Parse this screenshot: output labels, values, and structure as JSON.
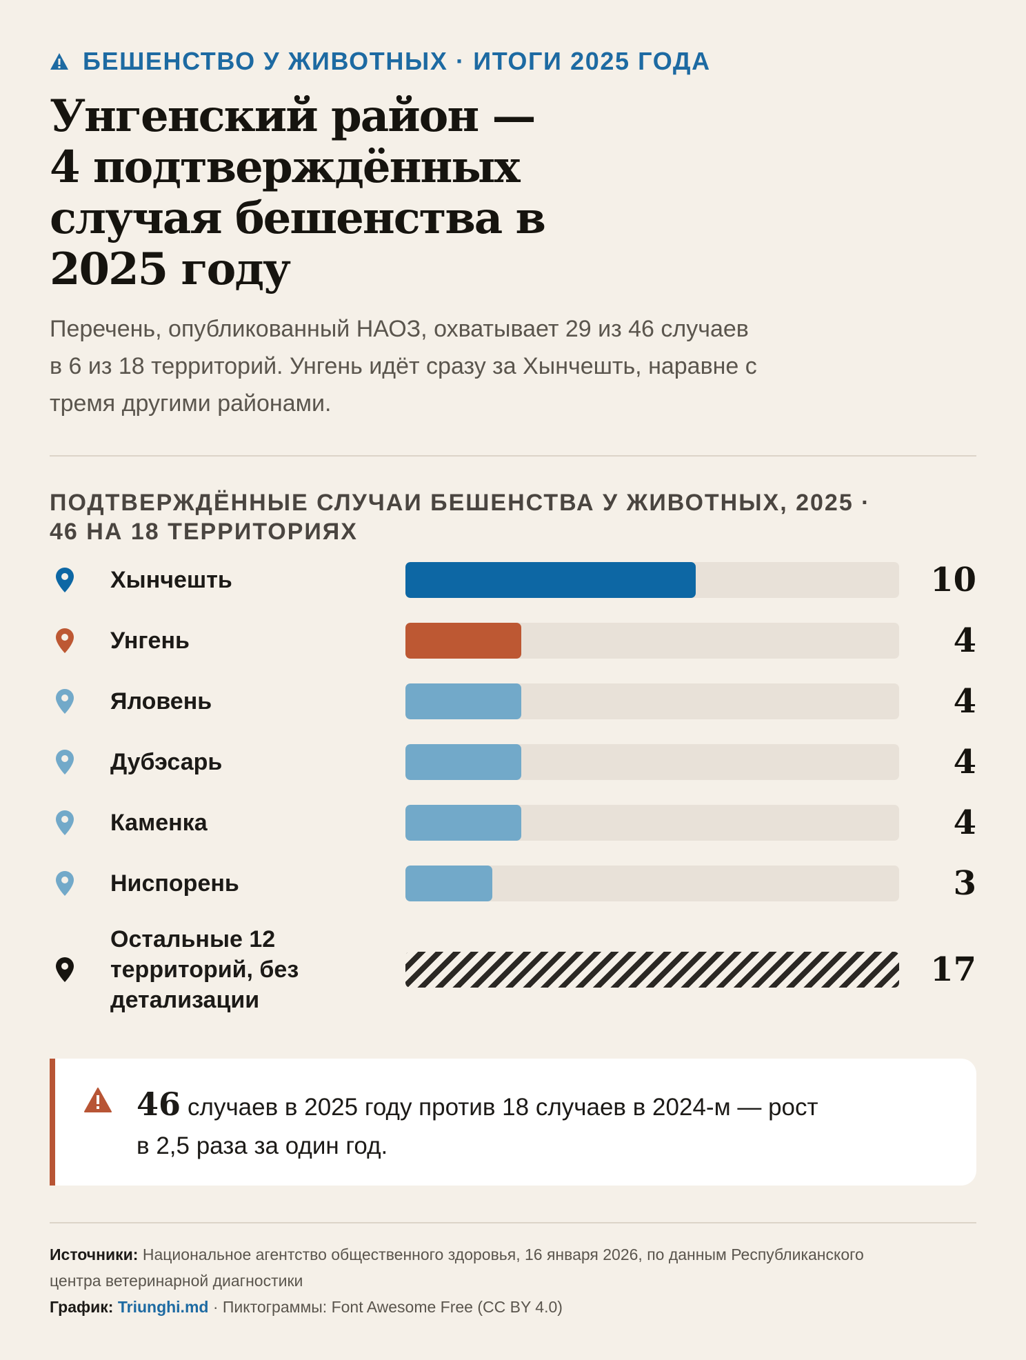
{
  "header": {
    "kicker": "БЕШЕНСТВО У ЖИВОТНЫХ · ИТОГИ 2025 ГОДА",
    "kicker_icon": "warning-triangle-icon",
    "title_lines": [
      "Унгенский район —",
      "4 подтверждённых",
      "случая бешенства в",
      "2025 году"
    ],
    "lede_lines": [
      "Перечень, опубликованный НАОЗ, охватывает 29 из 46 случаев",
      "в 6 из 18 территорий. Унгень идёт сразу за Хынчешть, наравне с",
      "тремя другими районами."
    ]
  },
  "chart_data": {
    "type": "bar",
    "orientation": "horizontal",
    "title_lines": [
      "ПОДТВЕРЖДЁННЫЕ СЛУЧАИ БЕШЕНСТВА У ЖИВОТНЫХ, 2025 ·",
      "46 НА 18 ТЕРРИТОРИЯХ"
    ],
    "xlim": [
      0,
      17
    ],
    "categories": [
      "Хынчешть",
      "Унгень",
      "Яловень",
      "Дубэсарь",
      "Каменка",
      "Ниспорень",
      "Остальные 12 территорий, без детализации"
    ],
    "values": [
      10,
      4,
      4,
      4,
      4,
      3,
      17
    ],
    "category_label_lines": [
      [
        "Хынчешть"
      ],
      [
        "Унгень"
      ],
      [
        "Яловень"
      ],
      [
        "Дубэсарь"
      ],
      [
        "Каменка"
      ],
      [
        "Ниспорень"
      ],
      [
        "Остальные 12",
        "территорий, без",
        "детализации"
      ]
    ],
    "bar_colors": [
      "#0d67a4",
      "#bd5833",
      "#72a9c9",
      "#72a9c9",
      "#72a9c9",
      "#72a9c9",
      "hatched"
    ],
    "pin_colors": [
      "#0d67a4",
      "#bd5833",
      "#72a9c9",
      "#72a9c9",
      "#72a9c9",
      "#72a9c9",
      "#16140f"
    ],
    "track_color": "#e8e1d8",
    "pin_icon": "map-pin-icon"
  },
  "callout": {
    "icon": "warning-triangle-icon",
    "accent": "#b85535",
    "number": "46",
    "text_line1": "случаев в 2025 году против 18 случаев в 2024-м — рост",
    "text_line2": "в 2,5 раза за один год."
  },
  "footer": {
    "sources_label": "Источники:",
    "sources_text_line1": "Национальное агентство общественного здоровья, 16 января 2026, по данным Республиканского",
    "sources_text_line2": "центра ветеринарной диагностики",
    "chart_label": "График:",
    "chart_link": "Triunghi.md",
    "icons_credit": "· Пиктограммы: Font Awesome Free (CC BY 4.0)"
  }
}
